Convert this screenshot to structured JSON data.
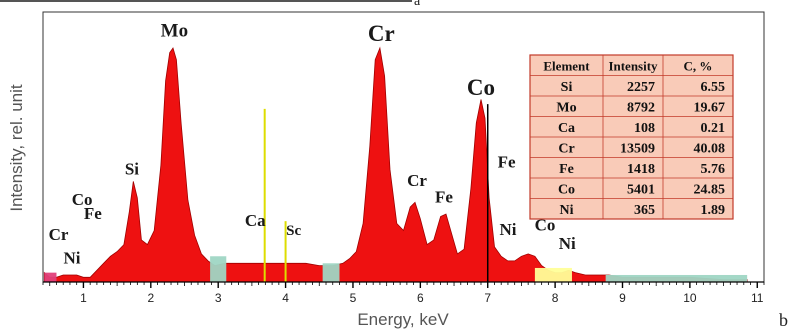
{
  "top_marker": "a",
  "panel_label": "b",
  "chart_data": {
    "type": "area",
    "xlabel": "Energy, keV",
    "ylabel": "Intensity, rel. unit",
    "xlim": [
      0.4,
      11.1
    ],
    "ylim": [
      0,
      100
    ],
    "xticks": [
      "1",
      "2",
      "3",
      "4",
      "5",
      "6",
      "7",
      "8",
      "9",
      "10",
      "11"
    ],
    "grid": false,
    "colors": {
      "spectrum": "#ee1111",
      "spectrum_edge": "#a00000",
      "teal_band": "#9fd6c4",
      "yellow_band": "#ffff99",
      "yellow_line": "#dddd00",
      "pink": "#e0407a",
      "table_bg": "#f9cbb8",
      "table_border": "#c23a2a"
    },
    "spectrum": {
      "x": [
        0.42,
        0.5,
        0.6,
        0.7,
        0.8,
        0.9,
        1.0,
        1.1,
        1.2,
        1.3,
        1.4,
        1.5,
        1.6,
        1.68,
        1.74,
        1.8,
        1.86,
        1.95,
        2.05,
        2.15,
        2.22,
        2.28,
        2.33,
        2.38,
        2.45,
        2.55,
        2.65,
        2.75,
        2.85,
        2.95,
        3.1,
        3.3,
        3.5,
        3.7,
        3.9,
        4.1,
        4.3,
        4.5,
        4.7,
        4.85,
        4.95,
        5.05,
        5.15,
        5.25,
        5.33,
        5.4,
        5.47,
        5.55,
        5.65,
        5.75,
        5.85,
        5.92,
        6.0,
        6.1,
        6.2,
        6.3,
        6.38,
        6.45,
        6.55,
        6.65,
        6.75,
        6.83,
        6.9,
        6.96,
        7.02,
        7.1,
        7.2,
        7.3,
        7.4,
        7.5,
        7.6,
        7.7,
        7.8,
        7.9,
        8.0,
        8.1,
        8.2,
        8.3,
        8.45,
        8.6,
        8.8,
        9.0,
        9.5,
        10.0,
        10.5,
        10.85
      ],
      "y": [
        4,
        2,
        2,
        3,
        3,
        3,
        2,
        2,
        5,
        8,
        11,
        13,
        16,
        30,
        43,
        36,
        18,
        16,
        22,
        50,
        86,
        98,
        100,
        95,
        68,
        35,
        20,
        12,
        9,
        7,
        8,
        8,
        8,
        8,
        8,
        8,
        8,
        7,
        7,
        8,
        10,
        13,
        25,
        58,
        95,
        100,
        88,
        48,
        25,
        22,
        32,
        34,
        27,
        16,
        18,
        28,
        29,
        22,
        12,
        14,
        40,
        68,
        78,
        70,
        36,
        15,
        11,
        9,
        9,
        11,
        12,
        11,
        7,
        5,
        4,
        4,
        5,
        4,
        3,
        3,
        3,
        2,
        2,
        2,
        1,
        1
      ]
    },
    "bands": [
      {
        "name": "teal",
        "x": [
          2.88,
          3.12
        ],
        "height": 11
      },
      {
        "name": "teal",
        "x": [
          4.55,
          4.8
        ],
        "height": 8
      },
      {
        "name": "yellow",
        "x": [
          7.7,
          8.25
        ],
        "height": 6
      },
      {
        "name": "teal",
        "x": [
          8.75,
          10.85
        ],
        "height": 3
      },
      {
        "name": "pink",
        "x": [
          0.42,
          0.6
        ],
        "height": 4
      }
    ],
    "lines": [
      {
        "name": "Ca",
        "x": 3.69,
        "height": 74,
        "color": "yellow"
      },
      {
        "name": "Sc",
        "x": 4.0,
        "height": 26,
        "color": "yellow"
      },
      {
        "name": "Co",
        "x": 7.0,
        "height": 76,
        "color": "black"
      }
    ],
    "peak_labels": [
      {
        "text": "Mo",
        "x": 2.35,
        "y": 105,
        "size": 19
      },
      {
        "text": "Cr",
        "x": 5.42,
        "y": 103,
        "size": 23
      },
      {
        "text": "Co",
        "x": 6.9,
        "y": 80,
        "size": 23
      },
      {
        "text": "Si",
        "x": 1.72,
        "y": 46,
        "size": 17
      },
      {
        "text": "Co",
        "x": 0.98,
        "y": 33,
        "size": 17
      },
      {
        "text": "Fe",
        "x": 1.14,
        "y": 27,
        "size": 17
      },
      {
        "text": "Cr",
        "x": 0.63,
        "y": 18,
        "size": 17
      },
      {
        "text": "Ni",
        "x": 0.83,
        "y": 8,
        "size": 17
      },
      {
        "text": "Ca",
        "x": 3.55,
        "y": 24,
        "size": 17
      },
      {
        "text": "Sc",
        "x": 4.12,
        "y": 20,
        "size": 15
      },
      {
        "text": "Cr",
        "x": 5.95,
        "y": 41,
        "size": 17
      },
      {
        "text": "Fe",
        "x": 6.35,
        "y": 34,
        "size": 17
      },
      {
        "text": "Fe",
        "x": 7.28,
        "y": 49,
        "size": 17
      },
      {
        "text": "Ni",
        "x": 7.3,
        "y": 20,
        "size": 17
      },
      {
        "text": "Co",
        "x": 7.85,
        "y": 22,
        "size": 17
      },
      {
        "text": "Ni",
        "x": 8.18,
        "y": 14,
        "size": 17
      }
    ],
    "table": {
      "headers": [
        "Element",
        "Intensity",
        "C, %"
      ],
      "rows": [
        [
          "Si",
          "2257",
          "6.55"
        ],
        [
          "Mo",
          "8792",
          "19.67"
        ],
        [
          "Ca",
          "108",
          "0.21"
        ],
        [
          "Cr",
          "13509",
          "40.08"
        ],
        [
          "Fe",
          "1418",
          "5.76"
        ],
        [
          "Co",
          "5401",
          "24.85"
        ],
        [
          "Ni",
          "365",
          "1.89"
        ]
      ]
    }
  }
}
